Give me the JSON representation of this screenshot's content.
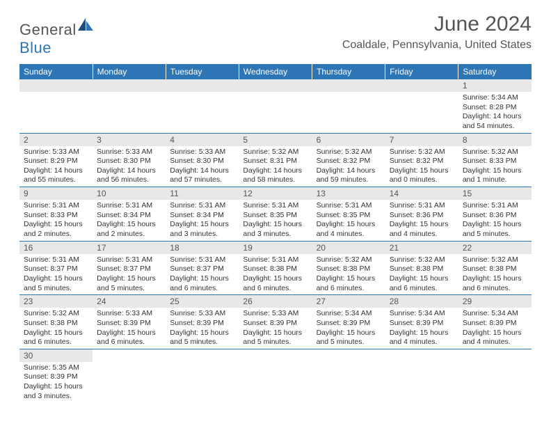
{
  "logo": {
    "text1": "General",
    "text2": "Blue"
  },
  "title": "June 2024",
  "location": "Coaldale, Pennsylvania, United States",
  "colors": {
    "header_bg": "#2e75b6",
    "header_fg": "#ffffff",
    "daynum_bg": "#e8e8e8",
    "border": "#2e75b6",
    "text": "#333333"
  },
  "daysOfWeek": [
    "Sunday",
    "Monday",
    "Tuesday",
    "Wednesday",
    "Thursday",
    "Friday",
    "Saturday"
  ],
  "weeks": [
    [
      null,
      null,
      null,
      null,
      null,
      null,
      {
        "n": "1",
        "sr": "5:34 AM",
        "ss": "8:28 PM",
        "dl": "14 hours and 54 minutes."
      }
    ],
    [
      {
        "n": "2",
        "sr": "5:33 AM",
        "ss": "8:29 PM",
        "dl": "14 hours and 55 minutes."
      },
      {
        "n": "3",
        "sr": "5:33 AM",
        "ss": "8:30 PM",
        "dl": "14 hours and 56 minutes."
      },
      {
        "n": "4",
        "sr": "5:33 AM",
        "ss": "8:30 PM",
        "dl": "14 hours and 57 minutes."
      },
      {
        "n": "5",
        "sr": "5:32 AM",
        "ss": "8:31 PM",
        "dl": "14 hours and 58 minutes."
      },
      {
        "n": "6",
        "sr": "5:32 AM",
        "ss": "8:32 PM",
        "dl": "14 hours and 59 minutes."
      },
      {
        "n": "7",
        "sr": "5:32 AM",
        "ss": "8:32 PM",
        "dl": "15 hours and 0 minutes."
      },
      {
        "n": "8",
        "sr": "5:32 AM",
        "ss": "8:33 PM",
        "dl": "15 hours and 1 minute."
      }
    ],
    [
      {
        "n": "9",
        "sr": "5:31 AM",
        "ss": "8:33 PM",
        "dl": "15 hours and 2 minutes."
      },
      {
        "n": "10",
        "sr": "5:31 AM",
        "ss": "8:34 PM",
        "dl": "15 hours and 2 minutes."
      },
      {
        "n": "11",
        "sr": "5:31 AM",
        "ss": "8:34 PM",
        "dl": "15 hours and 3 minutes."
      },
      {
        "n": "12",
        "sr": "5:31 AM",
        "ss": "8:35 PM",
        "dl": "15 hours and 3 minutes."
      },
      {
        "n": "13",
        "sr": "5:31 AM",
        "ss": "8:35 PM",
        "dl": "15 hours and 4 minutes."
      },
      {
        "n": "14",
        "sr": "5:31 AM",
        "ss": "8:36 PM",
        "dl": "15 hours and 4 minutes."
      },
      {
        "n": "15",
        "sr": "5:31 AM",
        "ss": "8:36 PM",
        "dl": "15 hours and 5 minutes."
      }
    ],
    [
      {
        "n": "16",
        "sr": "5:31 AM",
        "ss": "8:37 PM",
        "dl": "15 hours and 5 minutes."
      },
      {
        "n": "17",
        "sr": "5:31 AM",
        "ss": "8:37 PM",
        "dl": "15 hours and 5 minutes."
      },
      {
        "n": "18",
        "sr": "5:31 AM",
        "ss": "8:37 PM",
        "dl": "15 hours and 6 minutes."
      },
      {
        "n": "19",
        "sr": "5:31 AM",
        "ss": "8:38 PM",
        "dl": "15 hours and 6 minutes."
      },
      {
        "n": "20",
        "sr": "5:32 AM",
        "ss": "8:38 PM",
        "dl": "15 hours and 6 minutes."
      },
      {
        "n": "21",
        "sr": "5:32 AM",
        "ss": "8:38 PM",
        "dl": "15 hours and 6 minutes."
      },
      {
        "n": "22",
        "sr": "5:32 AM",
        "ss": "8:38 PM",
        "dl": "15 hours and 6 minutes."
      }
    ],
    [
      {
        "n": "23",
        "sr": "5:32 AM",
        "ss": "8:38 PM",
        "dl": "15 hours and 6 minutes."
      },
      {
        "n": "24",
        "sr": "5:33 AM",
        "ss": "8:39 PM",
        "dl": "15 hours and 6 minutes."
      },
      {
        "n": "25",
        "sr": "5:33 AM",
        "ss": "8:39 PM",
        "dl": "15 hours and 5 minutes."
      },
      {
        "n": "26",
        "sr": "5:33 AM",
        "ss": "8:39 PM",
        "dl": "15 hours and 5 minutes."
      },
      {
        "n": "27",
        "sr": "5:34 AM",
        "ss": "8:39 PM",
        "dl": "15 hours and 5 minutes."
      },
      {
        "n": "28",
        "sr": "5:34 AM",
        "ss": "8:39 PM",
        "dl": "15 hours and 4 minutes."
      },
      {
        "n": "29",
        "sr": "5:34 AM",
        "ss": "8:39 PM",
        "dl": "15 hours and 4 minutes."
      }
    ],
    [
      {
        "n": "30",
        "sr": "5:35 AM",
        "ss": "8:39 PM",
        "dl": "15 hours and 3 minutes."
      },
      null,
      null,
      null,
      null,
      null,
      null
    ]
  ],
  "labels": {
    "sunrise": "Sunrise:",
    "sunset": "Sunset:",
    "daylight": "Daylight:"
  }
}
